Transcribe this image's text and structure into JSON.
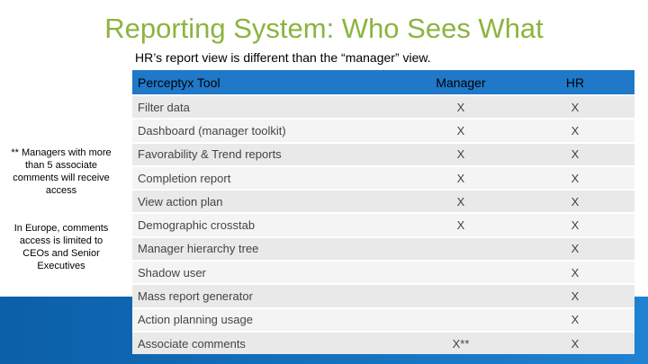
{
  "header": {
    "title": "Reporting System: Who Sees What",
    "subtitle": "HR’s report view is different than the “manager” view."
  },
  "notes": [
    "** Managers with more than 5 associate comments will receive access",
    "In Europe, comments access is limited to CEOs and Senior Executives"
  ],
  "table": {
    "columns": [
      "Perceptyx Tool",
      "Manager",
      "HR"
    ],
    "rows": [
      {
        "feature": "Filter data",
        "manager": "X",
        "hr": "X"
      },
      {
        "feature": "Dashboard (manager toolkit)",
        "manager": "X",
        "hr": "X"
      },
      {
        "feature": "Favorability & Trend reports",
        "manager": "X",
        "hr": "X"
      },
      {
        "feature": "Completion report",
        "manager": "X",
        "hr": "X"
      },
      {
        "feature": "View action plan",
        "manager": "X",
        "hr": "X"
      },
      {
        "feature": "Demographic crosstab",
        "manager": "X",
        "hr": "X"
      },
      {
        "feature": "Manager hierarchy tree",
        "hr": "X"
      },
      {
        "feature": "Shadow user",
        "hr": "X"
      },
      {
        "feature": "Mass report generator",
        "hr": "X"
      },
      {
        "feature": "Action planning usage",
        "hr": "X"
      },
      {
        "feature": "Associate comments",
        "manager": "X**",
        "hr": "X"
      }
    ]
  }
}
